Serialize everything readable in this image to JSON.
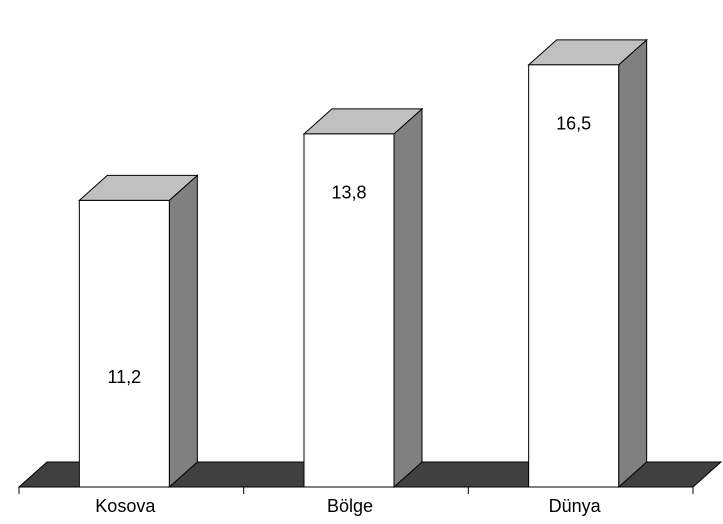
{
  "chart_data": {
    "type": "bar",
    "style": "3d",
    "categories": [
      "Kosova",
      "Bölge",
      "Dünya"
    ],
    "values": [
      11.2,
      13.8,
      16.5
    ],
    "value_labels": [
      "11,2",
      "13,8",
      "16,5"
    ],
    "ylim": [
      0,
      17.9
    ],
    "grid": false,
    "legend": "none",
    "colors": {
      "bar_front": "#ffffff",
      "bar_side": "#808080",
      "bar_top": "#c0c0c0",
      "floor": "#404040",
      "stroke": "#000000"
    }
  }
}
